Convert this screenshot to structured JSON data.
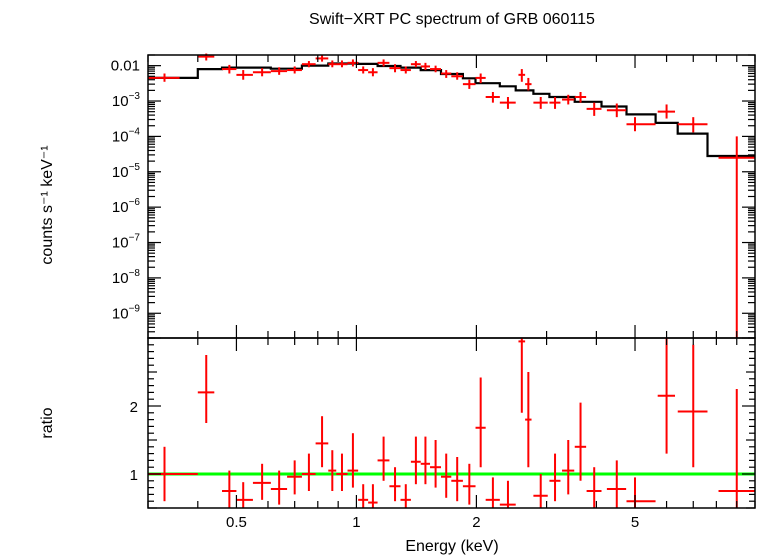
{
  "chart_data": {
    "type": "scatter",
    "title": "Swift−XRT PC spectrum of GRB 060115",
    "xlabel": "Energy (keV)",
    "xscale": "log",
    "xlim": [
      0.3,
      10
    ],
    "x_ticks": [
      {
        "value": 0.5,
        "label": "0.5"
      },
      {
        "value": 1,
        "label": "1"
      },
      {
        "value": 2,
        "label": "2"
      },
      {
        "value": 5,
        "label": "5"
      }
    ],
    "colors": {
      "data": "#ff0000",
      "model": "#000000",
      "unity": "#00ff00"
    },
    "top_panel": {
      "ylabel": "counts s⁻¹ keV⁻¹",
      "yscale": "log",
      "ylim": [
        2e-10,
        0.02
      ],
      "y_ticks": [
        {
          "value": 0.01,
          "label": "0.01"
        },
        {
          "value": 0.001,
          "base": "10",
          "exp": "−3"
        },
        {
          "value": 0.0001,
          "base": "10",
          "exp": "−4"
        },
        {
          "value": 1e-05,
          "base": "10",
          "exp": "−5"
        },
        {
          "value": 1e-06,
          "base": "10",
          "exp": "−6"
        },
        {
          "value": 1e-07,
          "base": "10",
          "exp": "−7"
        },
        {
          "value": 1e-08,
          "base": "10",
          "exp": "−8"
        },
        {
          "value": 1e-09,
          "base": "10",
          "exp": "−9"
        }
      ],
      "data": [
        {
          "x": 0.33,
          "xlo": 0.3,
          "xhi": 0.36,
          "y": 0.0045,
          "ylo": 0.0035,
          "yhi": 0.006
        },
        {
          "x": 0.42,
          "xlo": 0.4,
          "xhi": 0.44,
          "y": 0.018,
          "ylo": 0.014,
          "yhi": 0.022
        },
        {
          "x": 0.48,
          "xlo": 0.46,
          "xhi": 0.5,
          "y": 0.008,
          "ylo": 0.006,
          "yhi": 0.0105
        },
        {
          "x": 0.52,
          "xlo": 0.5,
          "xhi": 0.55,
          "y": 0.0055,
          "ylo": 0.004,
          "yhi": 0.0075
        },
        {
          "x": 0.58,
          "xlo": 0.55,
          "xhi": 0.61,
          "y": 0.0065,
          "ylo": 0.005,
          "yhi": 0.0085
        },
        {
          "x": 0.64,
          "xlo": 0.61,
          "xhi": 0.67,
          "y": 0.007,
          "ylo": 0.0055,
          "yhi": 0.009
        },
        {
          "x": 0.7,
          "xlo": 0.67,
          "xhi": 0.73,
          "y": 0.0075,
          "ylo": 0.006,
          "yhi": 0.0095
        },
        {
          "x": 0.76,
          "xlo": 0.73,
          "xhi": 0.79,
          "y": 0.011,
          "ylo": 0.009,
          "yhi": 0.0135
        },
        {
          "x": 0.82,
          "xlo": 0.79,
          "xhi": 0.85,
          "y": 0.016,
          "ylo": 0.013,
          "yhi": 0.02
        },
        {
          "x": 0.87,
          "xlo": 0.85,
          "xhi": 0.89,
          "y": 0.011,
          "ylo": 0.009,
          "yhi": 0.014
        },
        {
          "x": 0.92,
          "xlo": 0.89,
          "xhi": 0.95,
          "y": 0.011,
          "ylo": 0.009,
          "yhi": 0.014
        },
        {
          "x": 0.98,
          "xlo": 0.95,
          "xhi": 1.01,
          "y": 0.012,
          "ylo": 0.0095,
          "yhi": 0.015
        },
        {
          "x": 1.04,
          "xlo": 1.01,
          "xhi": 1.07,
          "y": 0.0075,
          "ylo": 0.006,
          "yhi": 0.0095
        },
        {
          "x": 1.1,
          "xlo": 1.07,
          "xhi": 1.13,
          "y": 0.0065,
          "ylo": 0.005,
          "yhi": 0.0085
        },
        {
          "x": 1.17,
          "xlo": 1.13,
          "xhi": 1.21,
          "y": 0.012,
          "ylo": 0.0095,
          "yhi": 0.015
        },
        {
          "x": 1.25,
          "xlo": 1.21,
          "xhi": 1.29,
          "y": 0.0085,
          "ylo": 0.0065,
          "yhi": 0.011
        },
        {
          "x": 1.33,
          "xlo": 1.29,
          "xhi": 1.37,
          "y": 0.0075,
          "ylo": 0.006,
          "yhi": 0.0095
        },
        {
          "x": 1.41,
          "xlo": 1.37,
          "xhi": 1.45,
          "y": 0.011,
          "ylo": 0.009,
          "yhi": 0.0135
        },
        {
          "x": 1.49,
          "xlo": 1.45,
          "xhi": 1.53,
          "y": 0.0095,
          "ylo": 0.0075,
          "yhi": 0.012
        },
        {
          "x": 1.58,
          "xlo": 1.53,
          "xhi": 1.63,
          "y": 0.008,
          "ylo": 0.0065,
          "yhi": 0.01
        },
        {
          "x": 1.68,
          "xlo": 1.63,
          "xhi": 1.73,
          "y": 0.006,
          "ylo": 0.0045,
          "yhi": 0.0075
        },
        {
          "x": 1.79,
          "xlo": 1.73,
          "xhi": 1.85,
          "y": 0.005,
          "ylo": 0.004,
          "yhi": 0.0065
        },
        {
          "x": 1.92,
          "xlo": 1.85,
          "xhi": 1.99,
          "y": 0.003,
          "ylo": 0.0022,
          "yhi": 0.004
        },
        {
          "x": 2.05,
          "xlo": 1.99,
          "xhi": 2.11,
          "y": 0.0045,
          "ylo": 0.0032,
          "yhi": 0.006
        },
        {
          "x": 2.2,
          "xlo": 2.11,
          "xhi": 2.29,
          "y": 0.0013,
          "ylo": 0.0009,
          "yhi": 0.0018
        },
        {
          "x": 2.4,
          "xlo": 2.29,
          "xhi": 2.51,
          "y": 0.0009,
          "ylo": 0.0006,
          "yhi": 0.0013
        },
        {
          "x": 2.6,
          "xlo": 2.55,
          "xhi": 2.65,
          "y": 0.0055,
          "ylo": 0.0035,
          "yhi": 0.008
        },
        {
          "x": 2.7,
          "xlo": 2.65,
          "xhi": 2.75,
          "y": 0.003,
          "ylo": 0.002,
          "yhi": 0.0045
        },
        {
          "x": 2.9,
          "xlo": 2.78,
          "xhi": 3.02,
          "y": 0.0009,
          "ylo": 0.0006,
          "yhi": 0.0013
        },
        {
          "x": 3.15,
          "xlo": 3.05,
          "xhi": 3.25,
          "y": 0.0009,
          "ylo": 0.0006,
          "yhi": 0.0013
        },
        {
          "x": 3.4,
          "xlo": 3.28,
          "xhi": 3.52,
          "y": 0.0011,
          "ylo": 0.0008,
          "yhi": 0.0015
        },
        {
          "x": 3.65,
          "xlo": 3.53,
          "xhi": 3.77,
          "y": 0.0013,
          "ylo": 0.0009,
          "yhi": 0.0018
        },
        {
          "x": 3.95,
          "xlo": 3.78,
          "xhi": 4.12,
          "y": 0.0006,
          "ylo": 0.00038,
          "yhi": 0.0009
        },
        {
          "x": 4.5,
          "xlo": 4.25,
          "xhi": 4.75,
          "y": 0.00055,
          "ylo": 0.00035,
          "yhi": 0.00085
        },
        {
          "x": 5.0,
          "xlo": 4.76,
          "xhi": 5.63,
          "y": 0.00022,
          "ylo": 0.00014,
          "yhi": 0.00035
        },
        {
          "x": 6.0,
          "xlo": 5.7,
          "xhi": 6.3,
          "y": 0.0005,
          "ylo": 0.00032,
          "yhi": 0.0008
        },
        {
          "x": 7.0,
          "xlo": 6.4,
          "xhi": 7.6,
          "y": 0.00022,
          "ylo": 0.00013,
          "yhi": 0.00035
        },
        {
          "x": 9.0,
          "xlo": 8.1,
          "xhi": 10.0,
          "y": 2.5e-05,
          "ylo": 2e-10,
          "yhi": 0.0001
        }
      ],
      "model_steps": [
        {
          "xlo": 0.3,
          "xhi": 0.4,
          "y": 0.0045
        },
        {
          "xlo": 0.4,
          "xhi": 0.46,
          "y": 0.008
        },
        {
          "xlo": 0.46,
          "xhi": 0.61,
          "y": 0.0088
        },
        {
          "xlo": 0.61,
          "xhi": 0.73,
          "y": 0.0082
        },
        {
          "xlo": 0.73,
          "xhi": 0.85,
          "y": 0.01
        },
        {
          "xlo": 0.85,
          "xhi": 1.01,
          "y": 0.0115
        },
        {
          "xlo": 1.01,
          "xhi": 1.13,
          "y": 0.0112
        },
        {
          "xlo": 1.13,
          "xhi": 1.29,
          "y": 0.0098
        },
        {
          "xlo": 1.29,
          "xhi": 1.45,
          "y": 0.0088
        },
        {
          "xlo": 1.45,
          "xhi": 1.63,
          "y": 0.0075
        },
        {
          "xlo": 1.63,
          "xhi": 1.85,
          "y": 0.0058
        },
        {
          "xlo": 1.85,
          "xhi": 1.99,
          "y": 0.0044
        },
        {
          "xlo": 1.99,
          "xhi": 2.29,
          "y": 0.0032
        },
        {
          "xlo": 2.29,
          "xhi": 2.51,
          "y": 0.0026
        },
        {
          "xlo": 2.51,
          "xhi": 2.78,
          "y": 0.002
        },
        {
          "xlo": 2.78,
          "xhi": 3.05,
          "y": 0.0016
        },
        {
          "xlo": 3.05,
          "xhi": 3.53,
          "y": 0.0013
        },
        {
          "xlo": 3.53,
          "xhi": 4.12,
          "y": 0.00095
        },
        {
          "xlo": 4.12,
          "xhi": 4.76,
          "y": 0.0007
        },
        {
          "xlo": 4.76,
          "xhi": 5.63,
          "y": 0.00042
        },
        {
          "xlo": 5.63,
          "xhi": 6.4,
          "y": 0.00024
        },
        {
          "xlo": 6.4,
          "xhi": 7.6,
          "y": 0.00012
        },
        {
          "xlo": 7.6,
          "xhi": 10.0,
          "y": 2.8e-05
        }
      ]
    },
    "bottom_panel": {
      "ylabel": "ratio",
      "yscale": "linear",
      "ylim": [
        0.5,
        3.0
      ],
      "y_ticks": [
        {
          "value": 1,
          "label": "1"
        },
        {
          "value": 2,
          "label": "2"
        }
      ],
      "unity_line": 1,
      "data": [
        {
          "x": 0.33,
          "xlo": 0.3,
          "xhi": 0.4,
          "y": 1.0,
          "ylo": 0.6,
          "yhi": 1.4
        },
        {
          "x": 0.42,
          "xlo": 0.4,
          "xhi": 0.44,
          "y": 2.2,
          "ylo": 1.75,
          "yhi": 2.75
        },
        {
          "x": 0.48,
          "xlo": 0.46,
          "xhi": 0.5,
          "y": 0.75,
          "ylo": 0.5,
          "yhi": 1.05
        },
        {
          "x": 0.52,
          "xlo": 0.5,
          "xhi": 0.55,
          "y": 0.62,
          "ylo": 0.5,
          "yhi": 0.88
        },
        {
          "x": 0.58,
          "xlo": 0.55,
          "xhi": 0.61,
          "y": 0.87,
          "ylo": 0.62,
          "yhi": 1.15
        },
        {
          "x": 0.64,
          "xlo": 0.61,
          "xhi": 0.67,
          "y": 0.78,
          "ylo": 0.55,
          "yhi": 1.05
        },
        {
          "x": 0.7,
          "xlo": 0.67,
          "xhi": 0.73,
          "y": 0.96,
          "ylo": 0.7,
          "yhi": 1.2
        },
        {
          "x": 0.76,
          "xlo": 0.73,
          "xhi": 0.79,
          "y": 1.0,
          "ylo": 0.75,
          "yhi": 1.3
        },
        {
          "x": 0.82,
          "xlo": 0.79,
          "xhi": 0.85,
          "y": 1.45,
          "ylo": 1.1,
          "yhi": 1.85
        },
        {
          "x": 0.87,
          "xlo": 0.85,
          "xhi": 0.89,
          "y": 1.05,
          "ylo": 0.75,
          "yhi": 1.35
        },
        {
          "x": 0.92,
          "xlo": 0.89,
          "xhi": 0.95,
          "y": 1.0,
          "ylo": 0.75,
          "yhi": 1.3
        },
        {
          "x": 0.98,
          "xlo": 0.95,
          "xhi": 1.01,
          "y": 1.05,
          "ylo": 0.8,
          "yhi": 1.6
        },
        {
          "x": 1.04,
          "xlo": 1.01,
          "xhi": 1.07,
          "y": 0.62,
          "ylo": 0.5,
          "yhi": 0.85
        },
        {
          "x": 1.1,
          "xlo": 1.07,
          "xhi": 1.13,
          "y": 0.58,
          "ylo": 0.5,
          "yhi": 0.85
        },
        {
          "x": 1.17,
          "xlo": 1.13,
          "xhi": 1.21,
          "y": 1.2,
          "ylo": 0.9,
          "yhi": 1.55
        },
        {
          "x": 1.25,
          "xlo": 1.21,
          "xhi": 1.29,
          "y": 0.82,
          "ylo": 0.6,
          "yhi": 1.1
        },
        {
          "x": 1.33,
          "xlo": 1.29,
          "xhi": 1.37,
          "y": 0.62,
          "ylo": 0.5,
          "yhi": 0.85
        },
        {
          "x": 1.41,
          "xlo": 1.37,
          "xhi": 1.45,
          "y": 1.18,
          "ylo": 0.85,
          "yhi": 1.55
        },
        {
          "x": 1.49,
          "xlo": 1.45,
          "xhi": 1.53,
          "y": 1.15,
          "ylo": 0.85,
          "yhi": 1.55
        },
        {
          "x": 1.58,
          "xlo": 1.53,
          "xhi": 1.63,
          "y": 1.1,
          "ylo": 0.8,
          "yhi": 1.5
        },
        {
          "x": 1.68,
          "xlo": 1.63,
          "xhi": 1.73,
          "y": 0.96,
          "ylo": 0.65,
          "yhi": 1.3
        },
        {
          "x": 1.79,
          "xlo": 1.73,
          "xhi": 1.85,
          "y": 0.9,
          "ylo": 0.6,
          "yhi": 1.25
        },
        {
          "x": 1.92,
          "xlo": 1.85,
          "xhi": 1.99,
          "y": 0.82,
          "ylo": 0.55,
          "yhi": 1.15
        },
        {
          "x": 2.05,
          "xlo": 1.99,
          "xhi": 2.11,
          "y": 1.68,
          "ylo": 1.1,
          "yhi": 2.42
        },
        {
          "x": 2.2,
          "xlo": 2.11,
          "xhi": 2.29,
          "y": 0.62,
          "ylo": 0.5,
          "yhi": 0.95
        },
        {
          "x": 2.4,
          "xlo": 2.29,
          "xhi": 2.51,
          "y": 0.55,
          "ylo": 0.5,
          "yhi": 0.9
        },
        {
          "x": 2.6,
          "xlo": 2.55,
          "xhi": 2.65,
          "y": 2.95,
          "ylo": 1.9,
          "yhi": 3.0
        },
        {
          "x": 2.7,
          "xlo": 2.65,
          "xhi": 2.75,
          "y": 1.8,
          "ylo": 1.1,
          "yhi": 2.5
        },
        {
          "x": 2.9,
          "xlo": 2.78,
          "xhi": 3.02,
          "y": 0.68,
          "ylo": 0.5,
          "yhi": 1.0
        },
        {
          "x": 3.15,
          "xlo": 3.05,
          "xhi": 3.25,
          "y": 0.9,
          "ylo": 0.6,
          "yhi": 1.3
        },
        {
          "x": 3.4,
          "xlo": 3.28,
          "xhi": 3.52,
          "y": 1.05,
          "ylo": 0.7,
          "yhi": 1.5
        },
        {
          "x": 3.65,
          "xlo": 3.53,
          "xhi": 3.77,
          "y": 1.4,
          "ylo": 0.9,
          "yhi": 2.05
        },
        {
          "x": 3.95,
          "xlo": 3.78,
          "xhi": 4.12,
          "y": 0.75,
          "ylo": 0.5,
          "yhi": 1.1
        },
        {
          "x": 4.5,
          "xlo": 4.25,
          "xhi": 4.75,
          "y": 0.78,
          "ylo": 0.5,
          "yhi": 1.2
        },
        {
          "x": 5.0,
          "xlo": 4.76,
          "xhi": 5.63,
          "y": 0.6,
          "ylo": 0.5,
          "yhi": 0.95
        },
        {
          "x": 6.0,
          "xlo": 5.7,
          "xhi": 6.3,
          "y": 2.15,
          "ylo": 1.3,
          "yhi": 3.0
        },
        {
          "x": 7.0,
          "xlo": 6.4,
          "xhi": 7.6,
          "y": 1.92,
          "ylo": 1.1,
          "yhi": 2.9
        },
        {
          "x": 9.0,
          "xlo": 8.1,
          "xhi": 10.0,
          "y": 0.75,
          "ylo": 0.5,
          "yhi": 2.25
        }
      ]
    }
  }
}
